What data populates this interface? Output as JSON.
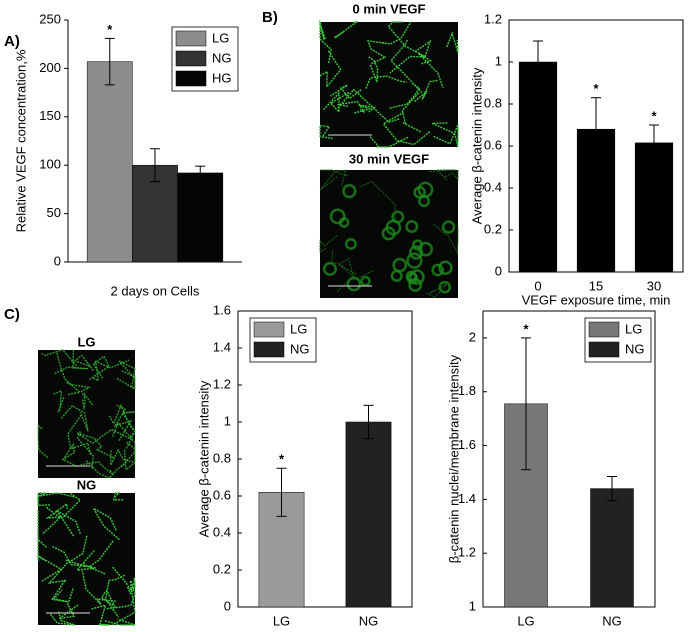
{
  "panels": [
    "A)",
    "B)",
    "C)"
  ],
  "images": [
    {
      "label": "0 min VEGF"
    },
    {
      "label": "30 min VEGF"
    },
    {
      "label": "LG"
    },
    {
      "label": "NG"
    }
  ],
  "chart_data": [
    {
      "type": "bar",
      "categories": [
        "2 days on Cells"
      ],
      "ylabel": "Relative VEGF concentration,%",
      "series": [
        {
          "name": "LG",
          "color": "#8c8c8c",
          "values": [
            207
          ],
          "errors": [
            24
          ],
          "annotations": [
            "*"
          ]
        },
        {
          "name": "NG",
          "color": "#333333",
          "values": [
            100
          ],
          "errors": [
            17
          ]
        },
        {
          "name": "HG",
          "color": "#050505",
          "values": [
            92
          ],
          "errors": [
            7
          ]
        }
      ],
      "ylim": [
        0,
        250
      ],
      "yticks": [
        0,
        50,
        100,
        150,
        200,
        250
      ],
      "legend": {
        "position": "upper right"
      },
      "box": false
    },
    {
      "type": "bar",
      "categories": [
        "0",
        "15",
        "30"
      ],
      "values": [
        1,
        0.68,
        0.615
      ],
      "errors": [
        0.1,
        0.15,
        0.085
      ],
      "annotations": [
        null,
        "*",
        "*"
      ],
      "color": "#000000",
      "xlabel": "VEGF exposure time, min",
      "ylabel": "Average  β-catenin intensity",
      "ylim": [
        0,
        1.2
      ],
      "yticks": [
        0,
        0.2,
        0.4,
        0.6,
        0.8,
        1,
        1.2
      ],
      "box": true
    },
    {
      "type": "bar",
      "categories": [
        "LG",
        "NG"
      ],
      "values": [
        0.62,
        1.0
      ],
      "errors": [
        0.13,
        0.09
      ],
      "annotations": [
        "*",
        null
      ],
      "colors": [
        "#9a9a9a",
        "#222222"
      ],
      "legend": {
        "position": "upper left",
        "entries": [
          "LG",
          "NG"
        ]
      },
      "ylabel": "Average  β-catenin intensity",
      "ylim": [
        0,
        1.6
      ],
      "yticks": [
        0,
        0.2,
        0.4,
        0.6,
        0.8,
        1,
        1.2,
        1.4,
        1.6
      ],
      "box": true
    },
    {
      "type": "bar",
      "categories": [
        "LG",
        "NG"
      ],
      "values": [
        1.755,
        1.44
      ],
      "errors": [
        0.245,
        0.045
      ],
      "annotations": [
        "*",
        null
      ],
      "colors": [
        "#777777",
        "#222222"
      ],
      "legend": {
        "position": "upper right",
        "entries": [
          "LG",
          "NG"
        ]
      },
      "ylabel": "β-catenin nuclei/membrane intensity",
      "ylim": [
        1,
        2.1
      ],
      "yticks": [
        1,
        1.2,
        1.4,
        1.6,
        1.8,
        2
      ],
      "box": true
    }
  ]
}
